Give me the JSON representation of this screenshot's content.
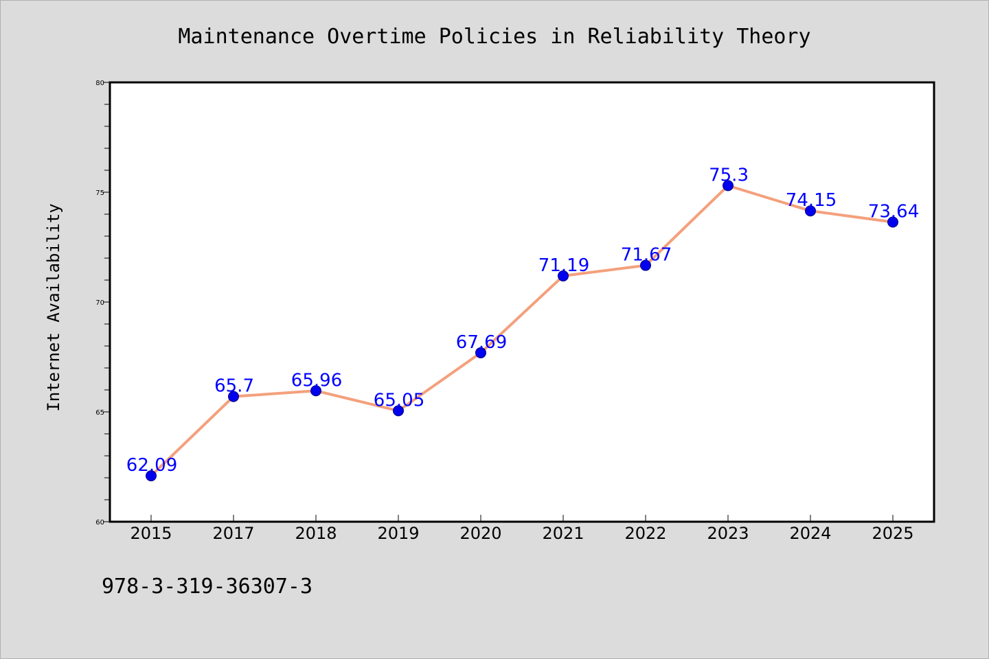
{
  "chart_data": {
    "type": "line",
    "title": "Maintenance Overtime Policies in Reliability Theory",
    "xlabel": "",
    "ylabel": "Internet Availability",
    "categories": [
      "2015",
      "2017",
      "2018",
      "2019",
      "2020",
      "2021",
      "2022",
      "2023",
      "2024",
      "2025"
    ],
    "series": [
      {
        "values": [
          62.09,
          65.7,
          65.96,
          65.05,
          67.69,
          71.19,
          71.67,
          75.3,
          74.15,
          73.64
        ],
        "data_labels": [
          "62.09",
          "65.7",
          "65.96",
          "65.05",
          "67.69",
          "71.19",
          "71.67",
          "75.3",
          "74.15",
          "73.64"
        ],
        "line_color": "#f4a07c",
        "marker_color": "#0000ee"
      }
    ],
    "ylim": [
      60,
      80
    ],
    "yticks": [
      "60",
      "65",
      "70",
      "75",
      "80"
    ],
    "grid": false,
    "legend": "none",
    "data_label_color": "#0000ff"
  },
  "annotation": "978-3-319-36307-3",
  "colors": {
    "background": "#dcdcdc",
    "plot_area": "#ffffff"
  }
}
